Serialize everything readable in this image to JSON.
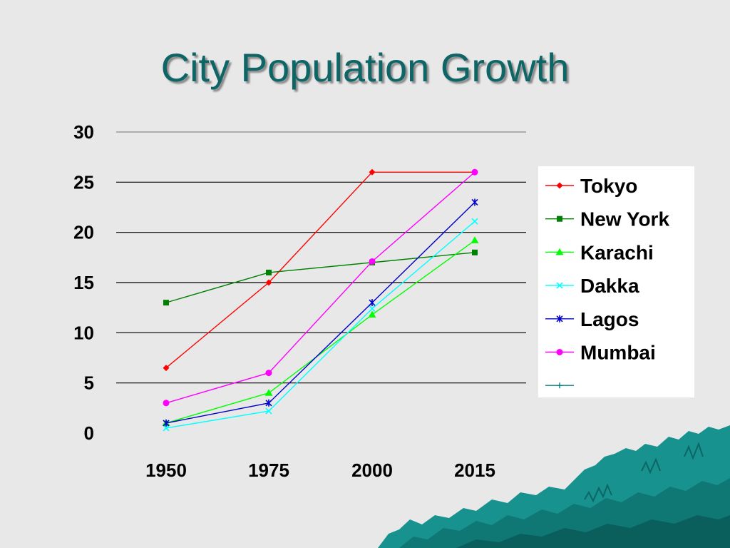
{
  "slide": {
    "title": "City Population Growth",
    "background_color": "#e8e8e8",
    "title_color": "#0d6566",
    "decoration": "teal-cliff-landscape"
  },
  "chart_data": {
    "type": "line",
    "title": "City Population Growth",
    "xlabel": "",
    "ylabel": "",
    "categories": [
      "1950",
      "1975",
      "2000",
      "2015"
    ],
    "ylim": [
      0,
      30
    ],
    "yticks": [
      0,
      5,
      10,
      15,
      20,
      25,
      30
    ],
    "grid": true,
    "legend_position": "right",
    "series": [
      {
        "name": "Tokyo",
        "color": "#ff0000",
        "marker": "diamond",
        "values": [
          6.5,
          15,
          26,
          26
        ]
      },
      {
        "name": "New York",
        "color": "#008000",
        "marker": "square",
        "values": [
          13,
          16,
          17,
          18
        ]
      },
      {
        "name": "Karachi",
        "color": "#00ff00",
        "marker": "triangle",
        "values": [
          1,
          4,
          11.8,
          19.2
        ]
      },
      {
        "name": "Dakka",
        "color": "#00ffff",
        "marker": "x",
        "values": [
          0.5,
          2.2,
          12.4,
          21.1
        ]
      },
      {
        "name": "Lagos",
        "color": "#0000cc",
        "marker": "star",
        "values": [
          1,
          3,
          13,
          23
        ]
      },
      {
        "name": "Mumbai",
        "color": "#ff00ff",
        "marker": "circle",
        "values": [
          3,
          6,
          17.1,
          26
        ]
      }
    ],
    "legend_extra_entry": {
      "name": "",
      "color": "#008080",
      "marker": "plus"
    }
  }
}
